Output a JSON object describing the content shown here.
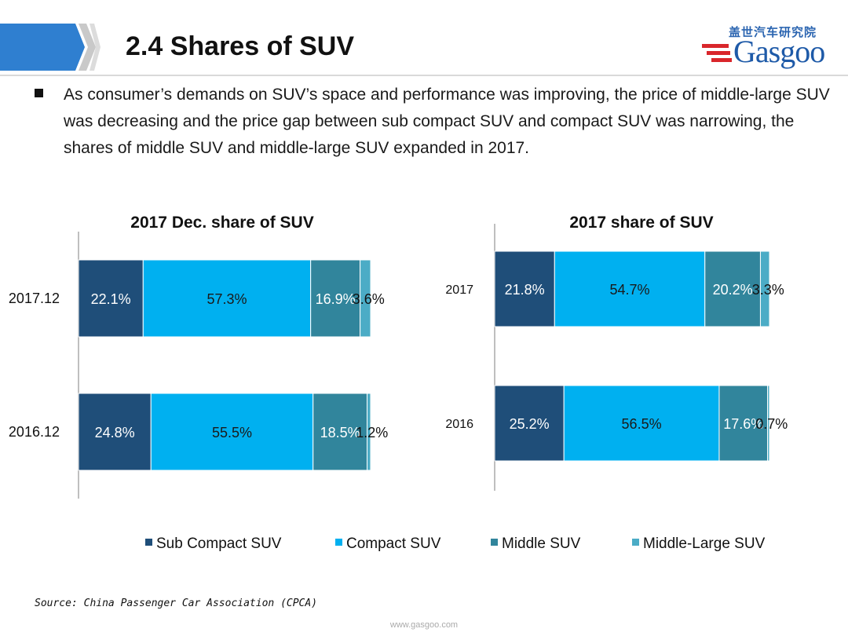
{
  "header": {
    "title": "2.4 Shares of SUV",
    "logo_cn": "盖世汽车研究院",
    "logo_en": "Gasgoo"
  },
  "bullet": {
    "text": "As consumer’s demands on SUV’s space and performance was improving, the price of middle-large SUV was decreasing and the price gap between sub compact SUV and compact SUV was narrowing, the shares of middle SUV and middle-large SUV expanded in 2017."
  },
  "legend": {
    "items": [
      {
        "label": "Sub Compact SUV",
        "color": "#1f4e79"
      },
      {
        "label": "Compact SUV",
        "color": "#00b0f0"
      },
      {
        "label": "Middle SUV",
        "color": "#31859c"
      },
      {
        "label": "Middle-Large SUV",
        "color": "#4bacc6"
      }
    ]
  },
  "chart_data": [
    {
      "type": "bar",
      "stacked": true,
      "orientation": "horizontal",
      "title": "2017 Dec. share of SUV",
      "categories": [
        "2017.12",
        "2016.12"
      ],
      "series": [
        {
          "name": "Sub Compact SUV",
          "values": [
            22.1,
            24.8
          ],
          "labels": [
            "22.1%",
            "24.8%"
          ],
          "color": "#1f4e79"
        },
        {
          "name": "Compact SUV",
          "values": [
            57.3,
            55.5
          ],
          "labels": [
            "57.3%",
            "55.5%"
          ],
          "color": "#00b0f0"
        },
        {
          "name": "Middle SUV",
          "values": [
            16.9,
            18.5
          ],
          "labels": [
            "16.9%",
            "18.5%"
          ],
          "color": "#31859c"
        },
        {
          "name": "Middle-Large SUV",
          "values": [
            3.6,
            1.2
          ],
          "labels": [
            "3.6%",
            "1.2%"
          ],
          "color": "#4bacc6"
        }
      ]
    },
    {
      "type": "bar",
      "stacked": true,
      "orientation": "horizontal",
      "title": "2017 share of SUV",
      "categories": [
        "2017",
        "2016"
      ],
      "series": [
        {
          "name": "Sub Compact SUV",
          "values": [
            21.8,
            25.2
          ],
          "labels": [
            "21.8%",
            "25.2%"
          ],
          "color": "#1f4e79"
        },
        {
          "name": "Compact SUV",
          "values": [
            54.7,
            56.5
          ],
          "labels": [
            "54.7%",
            "56.5%"
          ],
          "color": "#00b0f0"
        },
        {
          "name": "Middle SUV",
          "values": [
            20.2,
            17.6
          ],
          "labels": [
            "20.2%",
            "17.6%"
          ],
          "color": "#31859c"
        },
        {
          "name": "Middle-Large SUV",
          "values": [
            3.3,
            0.7
          ],
          "labels": [
            "3.3%",
            "0.7%"
          ],
          "color": "#4bacc6"
        }
      ]
    }
  ],
  "source": "Source: China Passenger Car Association (CPCA)",
  "footer_url": "www.gasgoo.com",
  "watermark": "盖世汽车 Gasgoo"
}
